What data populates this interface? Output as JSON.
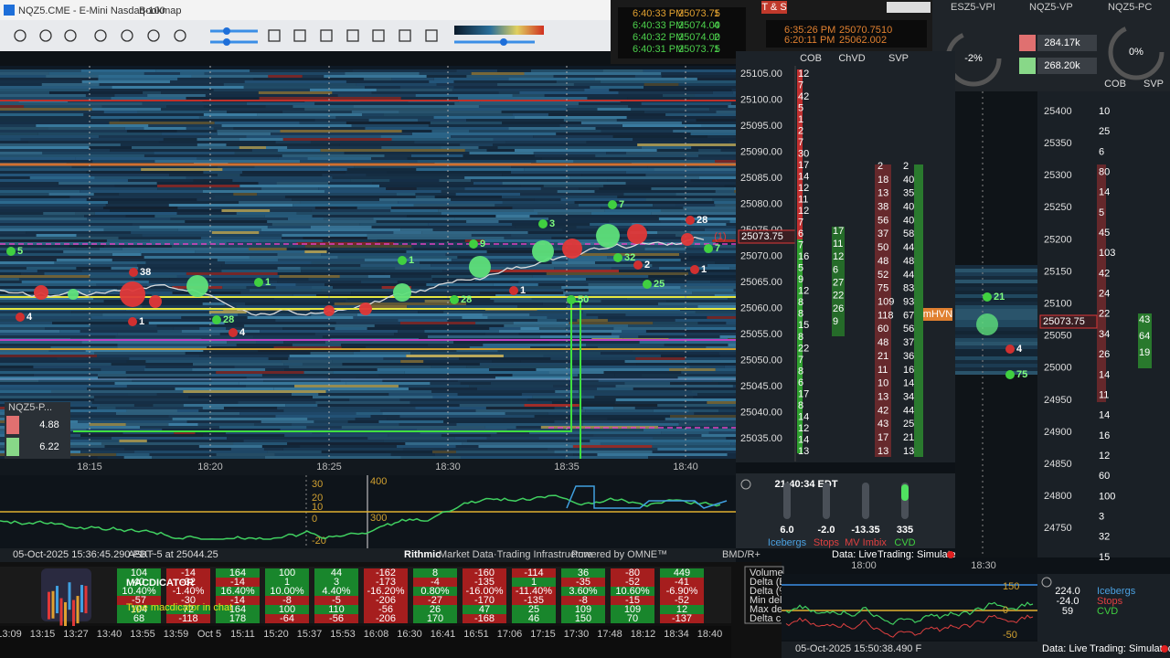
{
  "window": {
    "title": "NQZ5.CME - E-Mini Nasdaq-100",
    "app": "Bookmap"
  },
  "time_sales_1": [
    [
      "6:40:33 PM",
      "25073.75",
      "1"
    ],
    [
      "6:40:33 PM",
      "25074.00",
      "4"
    ],
    [
      "6:40:32 PM",
      "25074.00",
      "2"
    ],
    [
      "6:40:31 PM",
      "25073.75",
      "1"
    ]
  ],
  "time_sales_2": {
    "title": "T & S",
    "rows": [
      [
        "6:35:26 PM",
        "25070.75",
        "10"
      ],
      [
        "6:20:11 PM",
        "25062.00",
        "2"
      ]
    ]
  },
  "main_chart": {
    "x_labels": [
      "18:15",
      "18:20",
      "18:25",
      "18:30",
      "18:35",
      "18:40"
    ],
    "price_labels": [
      "25105.00",
      "25100.00",
      "25095.00",
      "25090.00",
      "25085.00",
      "25080.00",
      "25075.00",
      "25070.00",
      "25065.00",
      "25060.00",
      "25055.00",
      "25050.00",
      "25045.00",
      "25040.00",
      "25035.00"
    ],
    "current_price": "25073.75",
    "order_count": "(1)",
    "bubble_labels": [
      "5",
      "4",
      "38",
      "1",
      "28",
      "4",
      "1",
      "1",
      "28",
      "1",
      "9",
      "3",
      "7",
      "32",
      "2",
      "25",
      "50",
      "28",
      "7",
      "1"
    ],
    "mini_widget": {
      "title": "NQZ5-P...",
      "values": [
        "4.88",
        "6.22"
      ]
    }
  },
  "ladder": {
    "headers": [
      "COB",
      "ChVD",
      "SVP"
    ],
    "cob": [
      "12",
      "7",
      "42",
      "5",
      "1",
      "2",
      "7",
      "30",
      "17",
      "14",
      "12",
      "11",
      "12",
      "7",
      "6",
      "7",
      "16",
      "5",
      "9",
      "12",
      "8",
      "8",
      "15",
      "8",
      "22",
      "7",
      "8",
      "6",
      "17",
      "8",
      "14",
      "12",
      "14",
      "13"
    ],
    "chvd": [
      "17",
      "11",
      "12",
      "6",
      "27",
      "22",
      "26",
      "9"
    ],
    "svp_a": [
      "2",
      "18",
      "13",
      "38",
      "56",
      "37",
      "50",
      "48",
      "52",
      "75",
      "109",
      "118",
      "60",
      "48",
      "21",
      "11",
      "10",
      "13",
      "42",
      "43",
      "17",
      "13"
    ],
    "svp_b": [
      "2",
      "40",
      "35",
      "40",
      "40",
      "58",
      "44",
      "48",
      "44",
      "83",
      "93",
      "67",
      "56",
      "37",
      "36",
      "16",
      "14",
      "34",
      "44",
      "25",
      "21",
      "13"
    ],
    "mhvn": "mHVN"
  },
  "cvd_panel": {
    "axis": [
      "30",
      "20",
      "10",
      "0",
      "-20"
    ],
    "axis2": [
      "400",
      "300"
    ]
  },
  "clock_panel": {
    "time": "21:40:34 EDT",
    "indicators": [
      {
        "value": "6.0",
        "label": "Icebergs"
      },
      {
        "value": "-2.0",
        "label": "Stops"
      },
      {
        "value": "-13.35",
        "label": "MV Imbix"
      },
      {
        "value": "335",
        "label": "CVD"
      }
    ],
    "data_status": "Data: Live",
    "trading": "Trading: Simulated"
  },
  "status_bar": {
    "date": "05-Oct-2025 15:36:45.290 PDT",
    "ask": "ASK ~5 at 25044.25",
    "rithmic": "Rithmic",
    "rithmic_tag": "Market Data·Trading Infrastructure",
    "omne": "Powered by OMNE™",
    "bmd": "BMD/R+"
  },
  "macdicator": {
    "title": "MACDICATOR",
    "subtitle": "Type macdicator in chat",
    "row_labels": [
      "Volume",
      "Delta (Bar)",
      "Delta (%)",
      "Min delta",
      "Max delta",
      "Delta chng"
    ],
    "rows": [
      [
        "104",
        "-14",
        "164",
        "100",
        "44",
        "-162",
        "8",
        "-160",
        "-114",
        "36",
        "-80",
        "449"
      ],
      [
        "40",
        "-32",
        "-14",
        "1",
        "3",
        "-173",
        "-4",
        "-135",
        "1",
        "-35",
        "-52",
        "-41"
      ],
      [
        "10.40%",
        "-1.40%",
        "16.40%",
        "10.00%",
        "4.40%",
        "-16.20%",
        "0.80%",
        "-16.00%",
        "-11.40%",
        "3.60%",
        "10.60%",
        "-6.90%"
      ],
      [
        "-57",
        "-30",
        "-14",
        "-8",
        "-5",
        "-206",
        "-27",
        "-170",
        "-135",
        "-8",
        "-15",
        "-52"
      ],
      [
        "104",
        "72",
        "164",
        "100",
        "110",
        "-56",
        "26",
        "47",
        "25",
        "109",
        "109",
        "12"
      ],
      [
        "68",
        "-118",
        "178",
        "-64",
        "-56",
        "-206",
        "170",
        "-168",
        "46",
        "150",
        "70",
        "-137"
      ]
    ],
    "times": [
      "13:09",
      "13:15",
      "13:27",
      "13:40",
      "13:55",
      "13:59",
      "Oct 5",
      "15:11",
      "15:20",
      "15:37",
      "15:53",
      "16:08",
      "16:30",
      "16:41",
      "16:51",
      "17:06",
      "17:15",
      "17:30",
      "17:48",
      "18:12",
      "18:34",
      "18:40"
    ]
  },
  "right_panel": {
    "tabs": [
      "ESZ5-VPI",
      "NQZ5-VP",
      "NQZ5-PC"
    ],
    "gauges": [
      "-2%",
      "0%"
    ],
    "totals": [
      "284.17k",
      "268.20k"
    ],
    "headers": [
      "COB",
      "SVP"
    ],
    "price_labels": [
      "25400",
      "25350",
      "25300",
      "25250",
      "25200",
      "25150",
      "25100",
      "25050",
      "25000",
      "24950",
      "24900",
      "24850",
      "24800",
      "24750"
    ],
    "current_price": "25073.75",
    "cob": [
      "10",
      "25",
      "6",
      "80",
      "14",
      "5",
      "45",
      "103",
      "42",
      "24",
      "22",
      "34",
      "26",
      "14",
      "11",
      "14",
      "16",
      "12",
      "60",
      "100",
      "3",
      "32",
      "15"
    ],
    "svp": [
      "43",
      "64",
      "19"
    ],
    "bubble_labels": [
      "21",
      "4",
      "75"
    ],
    "x_labels": [
      "18:00",
      "18:30"
    ],
    "stats": [
      {
        "value": "224.0",
        "label": "Icebergs"
      },
      {
        "value": "-24.0",
        "label": "Stops"
      },
      {
        "value": "59",
        "label": "CVD"
      }
    ],
    "axis": [
      "150",
      "0",
      "-50"
    ],
    "date": "05-Oct-2025 15:50:38.490 F",
    "data_status": "Data: Live",
    "trading": "Trading: Simulated"
  }
}
